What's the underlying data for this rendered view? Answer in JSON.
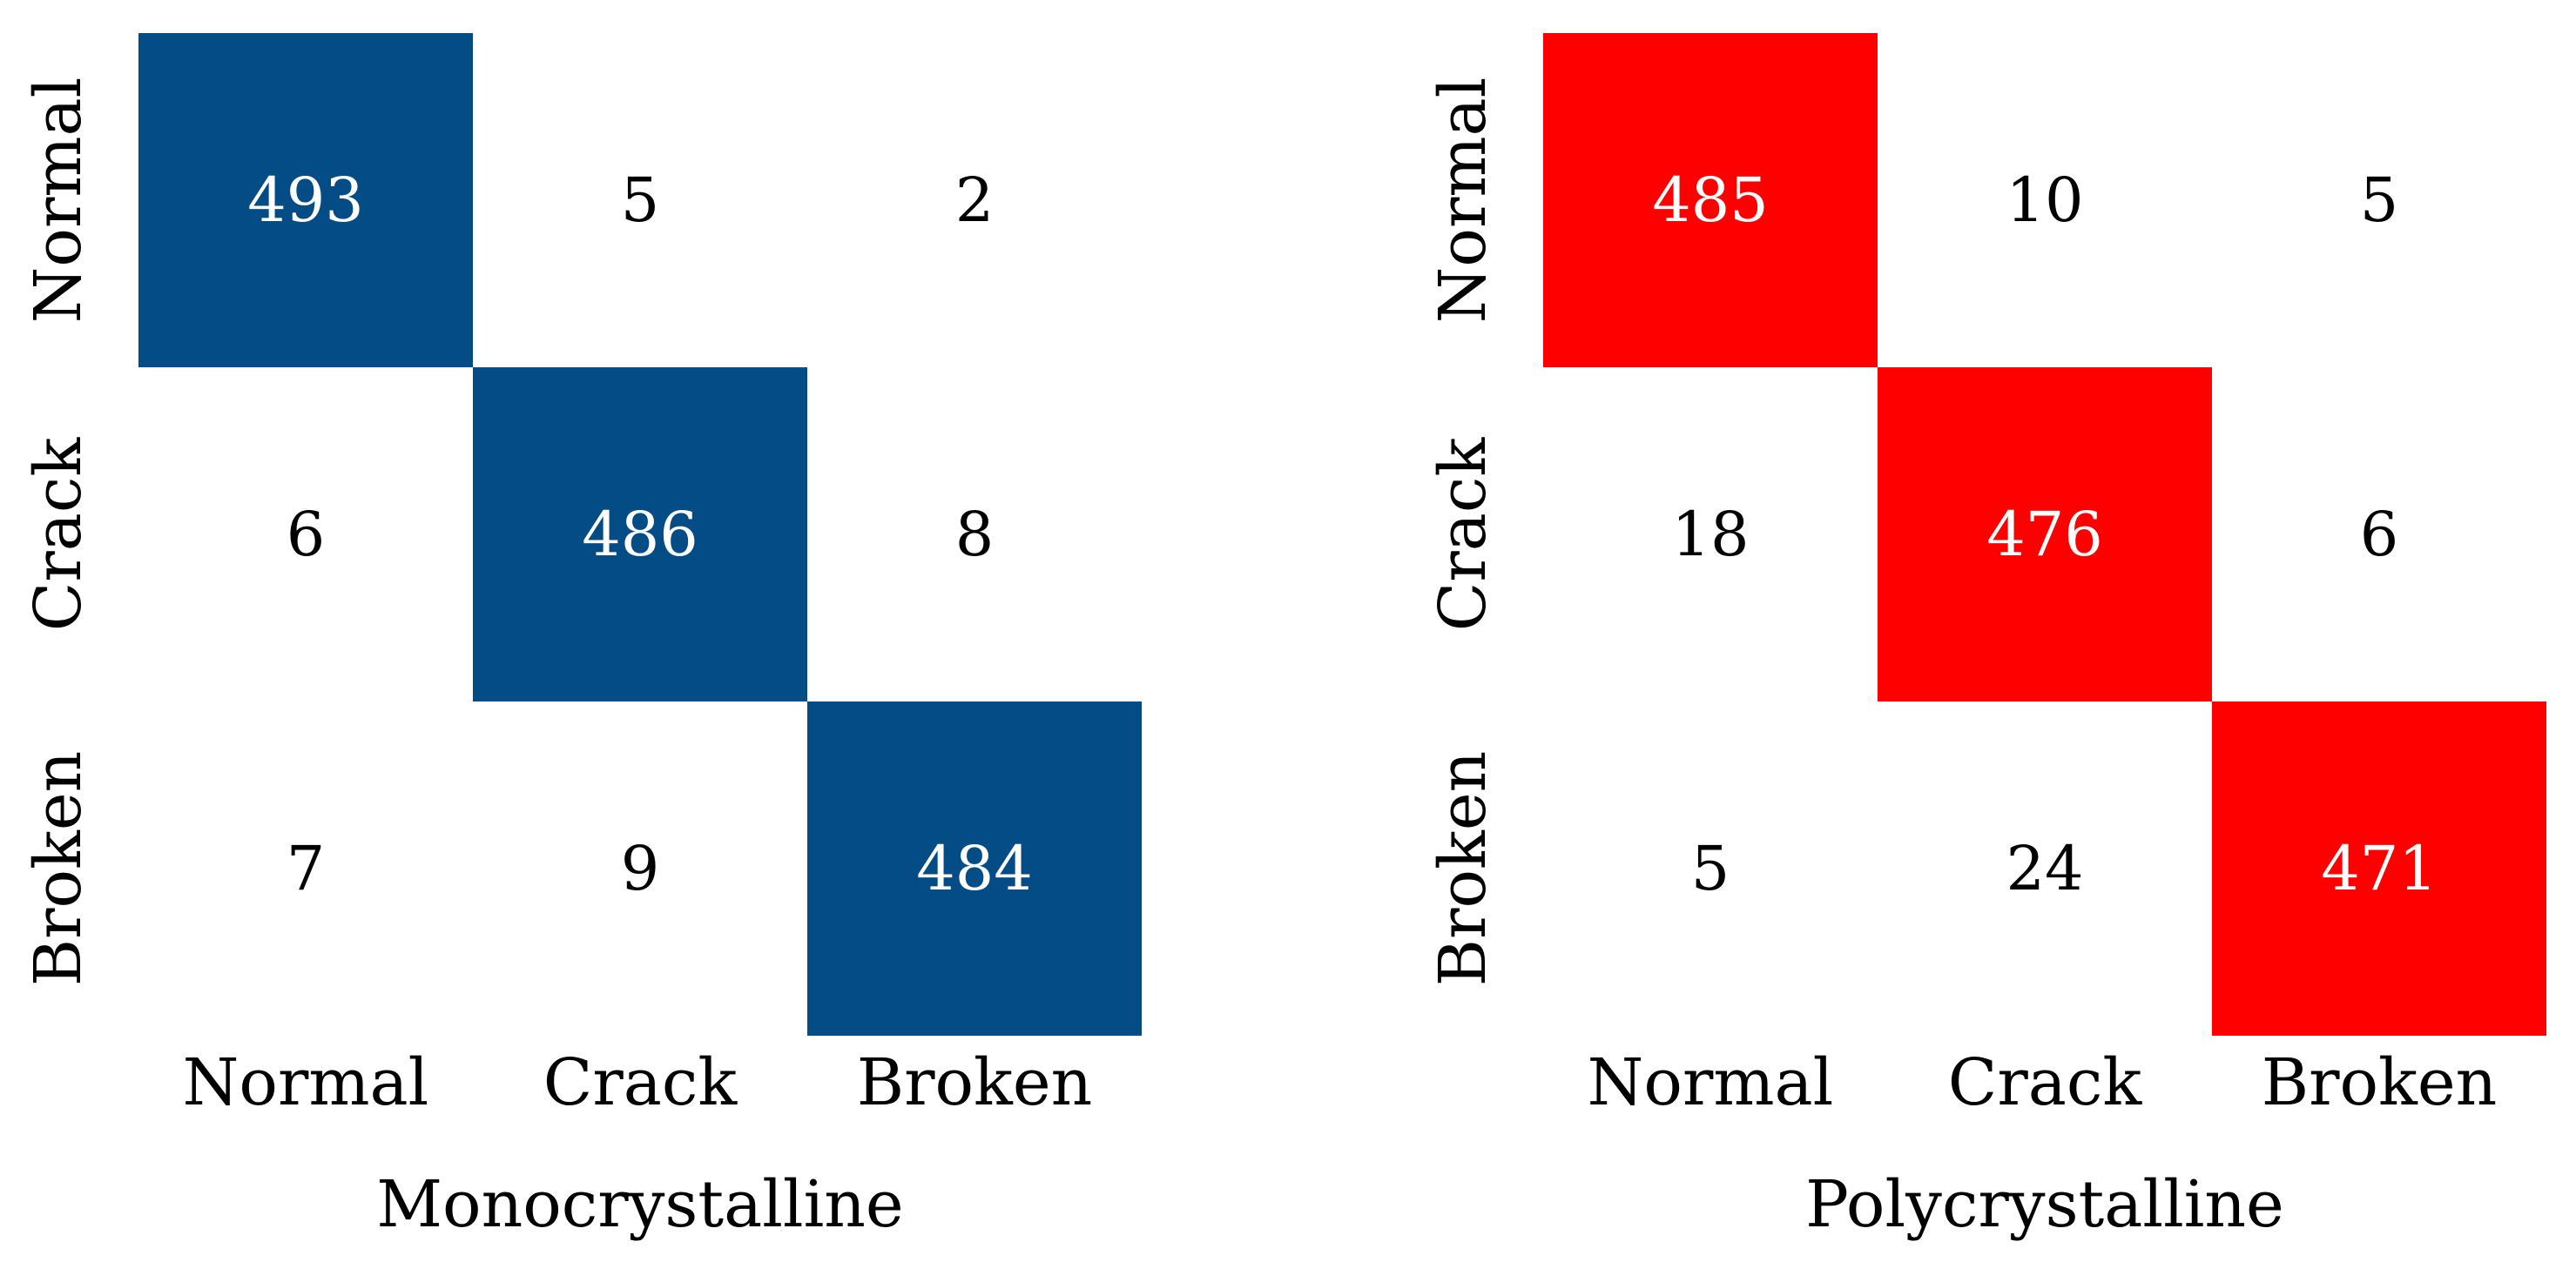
{
  "chart_data": [
    {
      "type": "heatmap",
      "title": "",
      "xlabel": "Monocrystalline",
      "ylabel": "",
      "x_categories": [
        "Normal",
        "Crack",
        "Broken"
      ],
      "y_categories": [
        "Normal",
        "Crack",
        "Broken"
      ],
      "values": [
        [
          493,
          5,
          2
        ],
        [
          6,
          486,
          8
        ],
        [
          7,
          9,
          484
        ]
      ],
      "highlight_color": "#034C85",
      "base_color": "#FFFFFF",
      "highlight_text_color": "#FFFFFF",
      "text_color": "#000000",
      "colorbar": false,
      "grid": false
    },
    {
      "type": "heatmap",
      "title": "",
      "xlabel": "Polycrystalline",
      "ylabel": "",
      "x_categories": [
        "Normal",
        "Crack",
        "Broken"
      ],
      "y_categories": [
        "Normal",
        "Crack",
        "Broken"
      ],
      "values": [
        [
          485,
          10,
          5
        ],
        [
          18,
          476,
          6
        ],
        [
          5,
          24,
          471
        ]
      ],
      "highlight_color": "#FF0000",
      "base_color": "#FFFFFF",
      "highlight_text_color": "#FFFFFF",
      "text_color": "#000000",
      "colorbar": false,
      "grid": false
    }
  ]
}
